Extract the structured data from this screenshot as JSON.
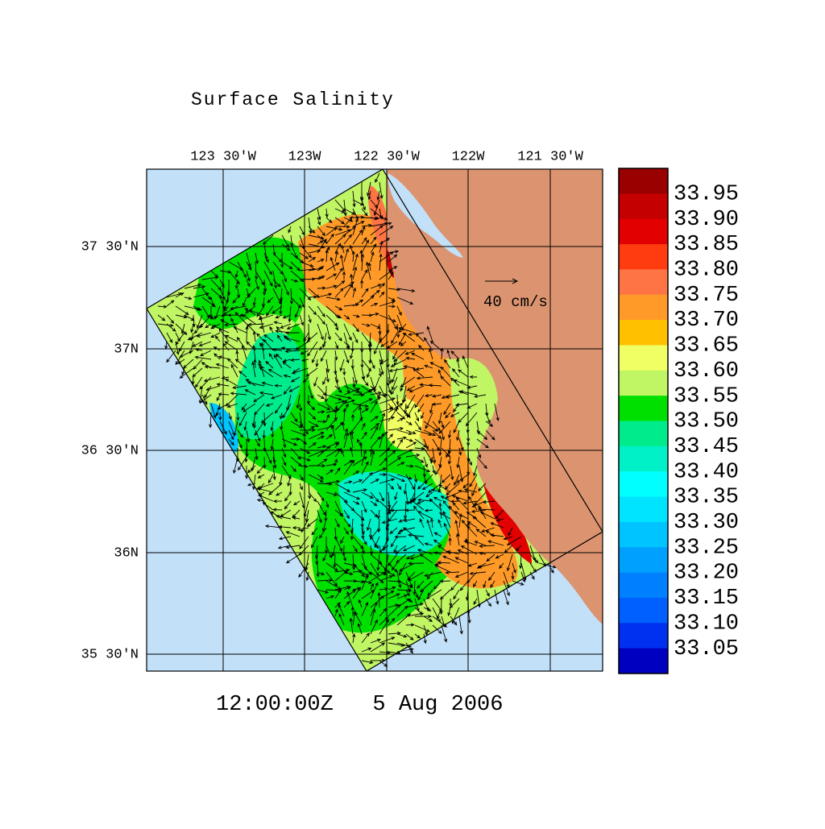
{
  "title": "Surface Salinity",
  "lon_labels": [
    "123 30'W",
    "123W",
    "122 30'W",
    "122W",
    "121 30'W"
  ],
  "lat_labels": [
    "37 30'N",
    "37N",
    "36 30'N",
    "36N",
    "35 30'N"
  ],
  "colorbar": {
    "labels": [
      "33.95",
      "33.90",
      "33.85",
      "33.80",
      "33.75",
      "33.70",
      "33.65",
      "33.60",
      "33.55",
      "33.50",
      "33.45",
      "33.40",
      "33.35",
      "33.30",
      "33.25",
      "33.20",
      "33.15",
      "33.10",
      "33.05"
    ],
    "colors": [
      "#990000",
      "#c40000",
      "#e20000",
      "#ff3c10",
      "#ff7444",
      "#ff9a28",
      "#ffc000",
      "#f0ff64",
      "#c0f564",
      "#00e000",
      "#00ec8c",
      "#00f0c8",
      "#00ffff",
      "#00e4ff",
      "#00c4ff",
      "#00a0ff",
      "#0080ff",
      "#0060ff",
      "#0030f0",
      "#0000c0"
    ]
  },
  "vector_scale_label": "40 cm/s",
  "time_label": "12:00:00Z   5 Aug 2006"
}
